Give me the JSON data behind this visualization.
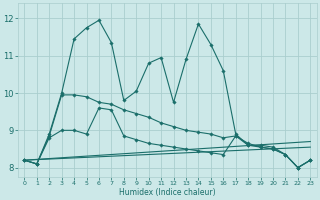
{
  "xlabel": "Humidex (Indice chaleur)",
  "xlim": [
    -0.5,
    23.5
  ],
  "ylim": [
    7.75,
    12.4
  ],
  "yticks": [
    8,
    9,
    10,
    11,
    12
  ],
  "xticks": [
    0,
    1,
    2,
    3,
    4,
    5,
    6,
    7,
    8,
    9,
    10,
    11,
    12,
    13,
    14,
    15,
    16,
    17,
    18,
    19,
    20,
    21,
    22,
    23
  ],
  "bg_color": "#cce8e8",
  "line_color": "#1a6e6a",
  "grid_color": "#aacece",
  "line1_x": [
    0,
    1,
    2,
    3,
    4,
    5,
    6,
    7,
    8,
    9,
    10,
    11,
    12,
    13,
    14,
    15,
    16,
    17,
    18,
    19,
    20,
    21,
    22,
    23
  ],
  "line1_y": [
    8.2,
    8.1,
    8.9,
    10.0,
    11.45,
    11.75,
    11.95,
    11.35,
    9.8,
    10.05,
    10.8,
    10.95,
    9.75,
    10.9,
    11.85,
    11.3,
    10.6,
    8.9,
    8.6,
    8.6,
    8.55,
    8.35,
    8.0,
    8.2
  ],
  "line2_x": [
    0,
    1,
    2,
    3,
    4,
    5,
    6,
    7,
    8,
    9,
    10,
    11,
    12,
    13,
    14,
    15,
    16,
    17,
    18,
    19,
    20,
    21,
    22,
    23
  ],
  "line2_y": [
    8.2,
    8.1,
    8.85,
    9.95,
    9.95,
    9.9,
    9.75,
    9.7,
    9.55,
    9.45,
    9.35,
    9.2,
    9.1,
    9.0,
    8.95,
    8.9,
    8.8,
    8.85,
    8.65,
    8.55,
    8.5,
    8.35,
    8.0,
    8.2
  ],
  "line3_x": [
    0,
    1,
    2,
    3,
    4,
    5,
    6,
    7,
    8,
    9,
    10,
    11,
    12,
    13,
    14,
    15,
    16,
    17,
    18,
    19,
    20,
    21,
    22,
    23
  ],
  "line3_y": [
    8.2,
    8.1,
    8.8,
    9.0,
    9.0,
    8.9,
    9.6,
    9.55,
    8.85,
    8.75,
    8.65,
    8.6,
    8.55,
    8.5,
    8.45,
    8.4,
    8.35,
    8.85,
    8.6,
    8.55,
    8.5,
    8.35,
    8.0,
    8.2
  ],
  "line4_x": [
    0,
    23
  ],
  "line4_y": [
    8.2,
    8.55
  ],
  "line5_x": [
    0,
    23
  ],
  "line5_y": [
    8.2,
    8.7
  ],
  "xlabel_fontsize": 5.5,
  "xtick_fontsize": 4.5,
  "ytick_fontsize": 6.0,
  "marker": "D",
  "markersize": 1.8
}
